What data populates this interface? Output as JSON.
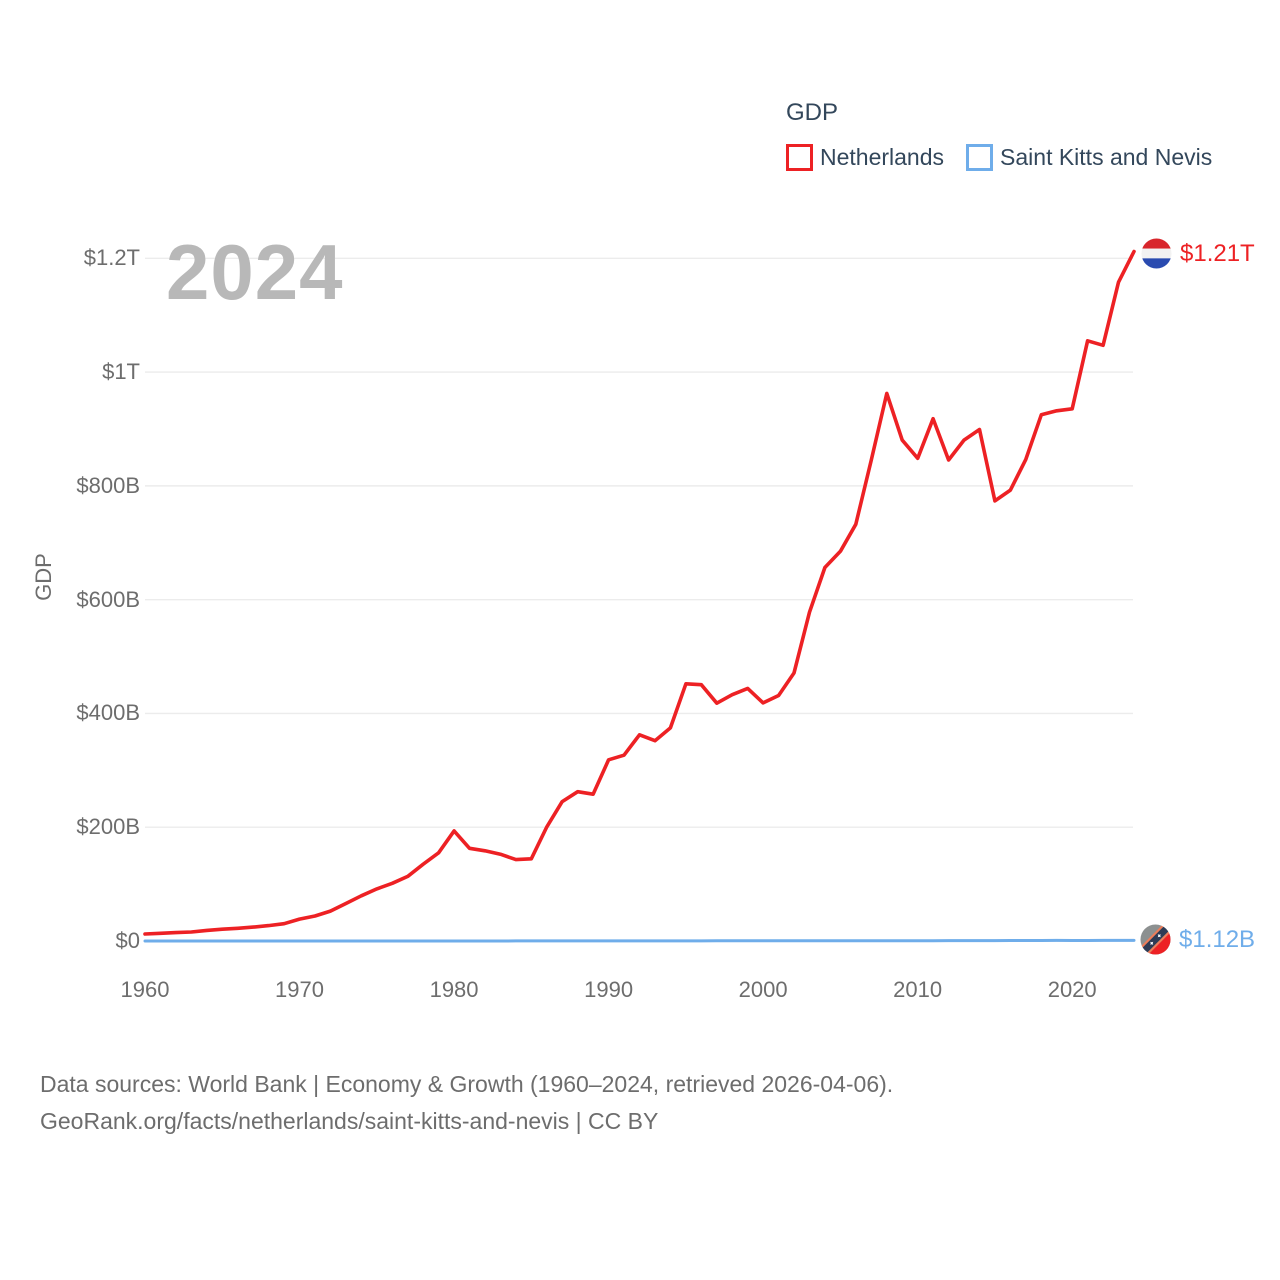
{
  "legend": {
    "title": "GDP",
    "items": [
      {
        "label": "Netherlands",
        "color": "#ed2124"
      },
      {
        "label": "Saint Kitts and Nevis",
        "color": "#6fadea"
      }
    ]
  },
  "watermark_year": "2024",
  "axis": {
    "y_label": "GDP",
    "y_ticks": [
      {
        "label": "$0",
        "value": 0
      },
      {
        "label": "$200B",
        "value": 200
      },
      {
        "label": "$400B",
        "value": 400
      },
      {
        "label": "$600B",
        "value": 600
      },
      {
        "label": "$800B",
        "value": 800
      },
      {
        "label": "$1T",
        "value": 1000
      },
      {
        "label": "$1.2T",
        "value": 1200
      }
    ],
    "x_ticks": [
      {
        "label": "1960",
        "year": 1960
      },
      {
        "label": "1970",
        "year": 1970
      },
      {
        "label": "1980",
        "year": 1980
      },
      {
        "label": "1990",
        "year": 1990
      },
      {
        "label": "2000",
        "year": 2000
      },
      {
        "label": "2010",
        "year": 2010
      },
      {
        "label": "2020",
        "year": 2020
      }
    ]
  },
  "end_labels": {
    "netherlands": {
      "value_text": "$1.21T",
      "flag": "netherlands-flag-icon"
    },
    "saint_kitts_and_nevis": {
      "value_text": "$1.12B",
      "flag": "saint-kitts-and-nevis-flag-icon"
    }
  },
  "footer": {
    "line1": "Data sources: World Bank | Economy & Growth (1960–2024, retrieved 2026-04-06).",
    "line2": "GeoRank.org/facts/netherlands/saint-kitts-and-nevis | CC BY"
  },
  "colors": {
    "netherlands_line": "#ed2124",
    "saint_kitts_line": "#6fadea",
    "gridline": "#ececec",
    "tick_text": "#6d6d6d",
    "legend_text": "#33475b",
    "watermark": "#b8b8b8"
  },
  "chart_data": {
    "type": "line",
    "title": "GDP",
    "xlabel": "",
    "ylabel": "GDP",
    "y_unit": "billions of current US$",
    "xlim": [
      1960,
      2024
    ],
    "ylim": [
      0,
      1250
    ],
    "grid": true,
    "legend_position": "top-right",
    "x": [
      1960,
      1961,
      1962,
      1963,
      1964,
      1965,
      1966,
      1967,
      1968,
      1969,
      1970,
      1971,
      1972,
      1973,
      1974,
      1975,
      1976,
      1977,
      1978,
      1979,
      1980,
      1981,
      1982,
      1983,
      1984,
      1985,
      1986,
      1987,
      1988,
      1989,
      1990,
      1991,
      1992,
      1993,
      1994,
      1995,
      1996,
      1997,
      1998,
      1999,
      2000,
      2001,
      2002,
      2003,
      2004,
      2005,
      2006,
      2007,
      2008,
      2009,
      2010,
      2011,
      2012,
      2013,
      2014,
      2015,
      2016,
      2017,
      2018,
      2019,
      2020,
      2021,
      2022,
      2023,
      2024
    ],
    "series": [
      {
        "name": "Netherlands",
        "color": "#ed2124",
        "end_value_label": "$1.21T",
        "values": [
          12.3,
          13.5,
          14.7,
          15.9,
          18.6,
          20.7,
          22.4,
          24.4,
          27.0,
          30.4,
          38.5,
          44.0,
          52.5,
          66.0,
          79.5,
          91.5,
          101.5,
          113.5,
          135.0,
          155.0,
          193.5,
          163.0,
          158.5,
          152.5,
          143.0,
          144.5,
          200.5,
          245.0,
          262.5,
          258.0,
          318.5,
          326.5,
          362.5,
          352.0,
          374.5,
          452.0,
          450.5,
          418.0,
          433.0,
          444.0,
          418.5,
          431.5,
          471.0,
          578.0,
          656.5,
          685.0,
          732.5,
          845.5,
          962.5,
          880.5,
          848.5,
          918.0,
          845.5,
          880.5,
          899.0,
          773.5,
          792.5,
          846.5,
          925.0,
          932.0,
          935.5,
          1055.0,
          1047.0,
          1158.0,
          1212.0
        ]
      },
      {
        "name": "Saint Kitts and Nevis",
        "color": "#6fadea",
        "end_value_label": "$1.12B",
        "values": [
          0.013,
          0.013,
          0.014,
          0.015,
          0.016,
          0.017,
          0.018,
          0.019,
          0.02,
          0.021,
          0.022,
          0.024,
          0.027,
          0.03,
          0.034,
          0.037,
          0.04,
          0.045,
          0.051,
          0.056,
          0.061,
          0.068,
          0.075,
          0.082,
          0.092,
          0.103,
          0.118,
          0.135,
          0.153,
          0.16,
          0.163,
          0.17,
          0.185,
          0.197,
          0.21,
          0.232,
          0.248,
          0.266,
          0.286,
          0.312,
          0.329,
          0.345,
          0.359,
          0.375,
          0.416,
          0.481,
          0.537,
          0.57,
          0.585,
          0.577,
          0.565,
          0.601,
          0.628,
          0.652,
          0.727,
          0.782,
          0.818,
          0.85,
          0.896,
          0.973,
          0.89,
          0.949,
          1.0,
          1.077,
          1.12
        ]
      }
    ]
  }
}
